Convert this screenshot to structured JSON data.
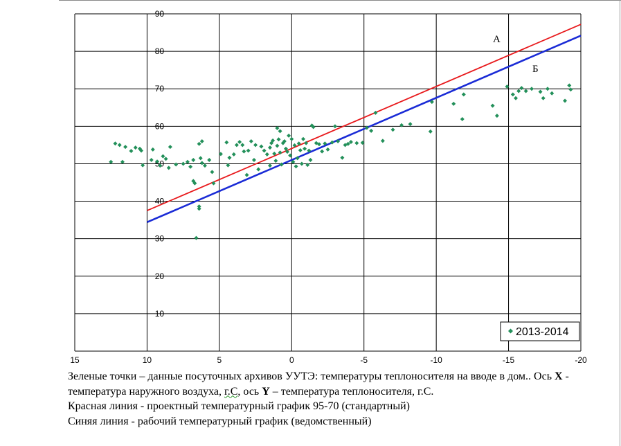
{
  "chart_data": {
    "type": "scatter",
    "x_axis": {
      "reversed": true,
      "range": [
        15,
        -20
      ],
      "ticks": [
        "15",
        "10",
        "5",
        "0",
        "-5",
        "-10",
        "-15",
        "-20"
      ]
    },
    "y_axis": {
      "range": [
        0,
        90
      ],
      "ticks": [
        "10",
        "20",
        "30",
        "40",
        "50",
        "60",
        "70",
        "80",
        "90"
      ]
    },
    "grid": true,
    "legend": {
      "position": "bottom-right",
      "label": "2013-2014"
    },
    "lines": [
      {
        "label": "А",
        "color": "#e8191c",
        "points": [
          [
            10,
            37.5
          ],
          [
            -20,
            87.2
          ]
        ]
      },
      {
        "label": "Б",
        "color": "#1a2bd6",
        "points": [
          [
            10,
            34.4
          ],
          [
            -20,
            84.2
          ]
        ]
      }
    ],
    "series": [
      {
        "name": "2013-2014",
        "color": "#23905a",
        "points": [
          [
            12.5,
            50.5
          ],
          [
            12.2,
            55.4
          ],
          [
            11.9,
            55
          ],
          [
            11.7,
            50.5
          ],
          [
            11.5,
            54.5
          ],
          [
            11.1,
            53.4
          ],
          [
            10.8,
            54.3
          ],
          [
            10.5,
            54
          ],
          [
            10.3,
            49.6
          ],
          [
            10.4,
            53.5
          ],
          [
            9.7,
            51
          ],
          [
            9.6,
            53.8
          ],
          [
            9.3,
            50.6
          ],
          [
            9.1,
            49.5
          ],
          [
            8.9,
            52
          ],
          [
            8.7,
            51.3
          ],
          [
            8.5,
            48.9
          ],
          [
            8.4,
            54.5
          ],
          [
            8,
            49.8
          ],
          [
            7.5,
            50
          ],
          [
            7.2,
            50.5
          ],
          [
            7,
            49.2
          ],
          [
            6.8,
            51
          ],
          [
            6.8,
            45.4
          ],
          [
            6.7,
            44.8
          ],
          [
            6.6,
            30.2
          ],
          [
            6.4,
            38
          ],
          [
            6.4,
            38.6
          ],
          [
            6.4,
            55.3
          ],
          [
            6.3,
            51.5
          ],
          [
            6.2,
            50.2
          ],
          [
            6.2,
            56
          ],
          [
            6,
            49.5
          ],
          [
            5.7,
            51
          ],
          [
            5.5,
            47.8
          ],
          [
            5.4,
            44.8
          ],
          [
            4.9,
            52.6
          ],
          [
            4.5,
            55.7
          ],
          [
            4.4,
            49.6
          ],
          [
            4.3,
            51.6
          ],
          [
            4.0,
            52.5
          ],
          [
            3.8,
            55
          ],
          [
            3.6,
            55.8
          ],
          [
            3.4,
            55
          ],
          [
            3.3,
            53.3
          ],
          [
            3.1,
            47
          ],
          [
            3.0,
            53.5
          ],
          [
            2.8,
            56
          ],
          [
            2.6,
            51
          ],
          [
            2.5,
            55
          ],
          [
            2.3,
            48.5
          ],
          [
            2.1,
            54.6
          ],
          [
            1.9,
            53.5
          ],
          [
            1.7,
            52.5
          ],
          [
            1.5,
            49.5
          ],
          [
            1.5,
            54.3
          ],
          [
            1.4,
            55.5
          ],
          [
            1.3,
            56.2
          ],
          [
            1.2,
            52.7
          ],
          [
            1.1,
            50.8
          ],
          [
            1,
            54.8
          ],
          [
            1,
            59.5
          ],
          [
            0.9,
            56.5
          ],
          [
            0.8,
            58.7
          ],
          [
            0.8,
            53
          ],
          [
            0.7,
            49.8
          ],
          [
            0.6,
            55.5
          ],
          [
            0.5,
            56
          ],
          [
            0.4,
            54
          ],
          [
            0.3,
            53.2
          ],
          [
            0.2,
            57.5
          ],
          [
            0.1,
            52.2
          ],
          [
            0,
            56.6
          ],
          [
            -0.1,
            50.5
          ],
          [
            -0.2,
            54.9
          ],
          [
            -0.3,
            49.3
          ],
          [
            -0.4,
            51.5
          ],
          [
            -0.5,
            55.4
          ],
          [
            -0.6,
            53.6
          ],
          [
            -0.7,
            50
          ],
          [
            -0.8,
            56.6
          ],
          [
            -0.9,
            54
          ],
          [
            -1,
            55.5
          ],
          [
            -1.1,
            49.7
          ],
          [
            -1.2,
            53.5
          ],
          [
            -1.3,
            51
          ],
          [
            -1.4,
            60.2
          ],
          [
            -1.5,
            59.8
          ],
          [
            -1.7,
            55.5
          ],
          [
            -1.9,
            55.2
          ],
          [
            -2.1,
            53.3
          ],
          [
            -2.3,
            55.4
          ],
          [
            -2.5,
            53.8
          ],
          [
            -2.8,
            55.7
          ],
          [
            -3,
            60
          ],
          [
            -3.2,
            56
          ],
          [
            -3.5,
            51.6
          ],
          [
            -3.7,
            55
          ],
          [
            -3.9,
            55.3
          ],
          [
            -4.1,
            55.8
          ],
          [
            -4.5,
            55.5
          ],
          [
            -4.9,
            55.6
          ],
          [
            -5.2,
            59.6
          ],
          [
            -5.5,
            58.8
          ],
          [
            -5.8,
            63.6
          ],
          [
            -6.3,
            56.1
          ],
          [
            -7,
            59.1
          ],
          [
            -7.6,
            60.3
          ],
          [
            -8.2,
            60.6
          ],
          [
            -9.6,
            58.6
          ],
          [
            -9.7,
            66.5
          ],
          [
            -11.2,
            66
          ],
          [
            -11.8,
            61.9
          ],
          [
            -11.9,
            68.5
          ],
          [
            -13.9,
            65.5
          ],
          [
            -14.2,
            62.8
          ],
          [
            -14.9,
            70.6
          ],
          [
            -15.3,
            68.5
          ],
          [
            -15.5,
            67.5
          ],
          [
            -15.7,
            69.4
          ],
          [
            -15.9,
            70.2
          ],
          [
            -16.2,
            69.4
          ],
          [
            -16.6,
            70
          ],
          [
            -17.2,
            69.2
          ],
          [
            -17.4,
            67.5
          ],
          [
            -17.7,
            70
          ],
          [
            -18,
            68.8
          ],
          [
            -18.9,
            66.8
          ],
          [
            -19.2,
            70.9
          ],
          [
            -19.3,
            69.8
          ]
        ]
      }
    ]
  },
  "caption": {
    "line1": "Зеленые точки – данные посуточных архивов УУТЭ: температуры теплоносителя на вводе в дом.. Ось ",
    "axis_x_letter": "X",
    "line1b": "  - температура наружного воздуха, ",
    "unit_gc": "г.С",
    "line1c": ", ось ",
    "axis_y_letter": "Y",
    "line1d": " – температура теплоносителя, г.С.",
    "line2": "Красная линия  - проектный температурный график  95-70 (стандартный)",
    "line3": "Синяя линия -  рабочий температурный график (ведомственный)"
  },
  "colors": {
    "red_line": "#e8191c",
    "blue_line": "#1a2bd6",
    "points": "#23905a",
    "grid": "#000000"
  }
}
